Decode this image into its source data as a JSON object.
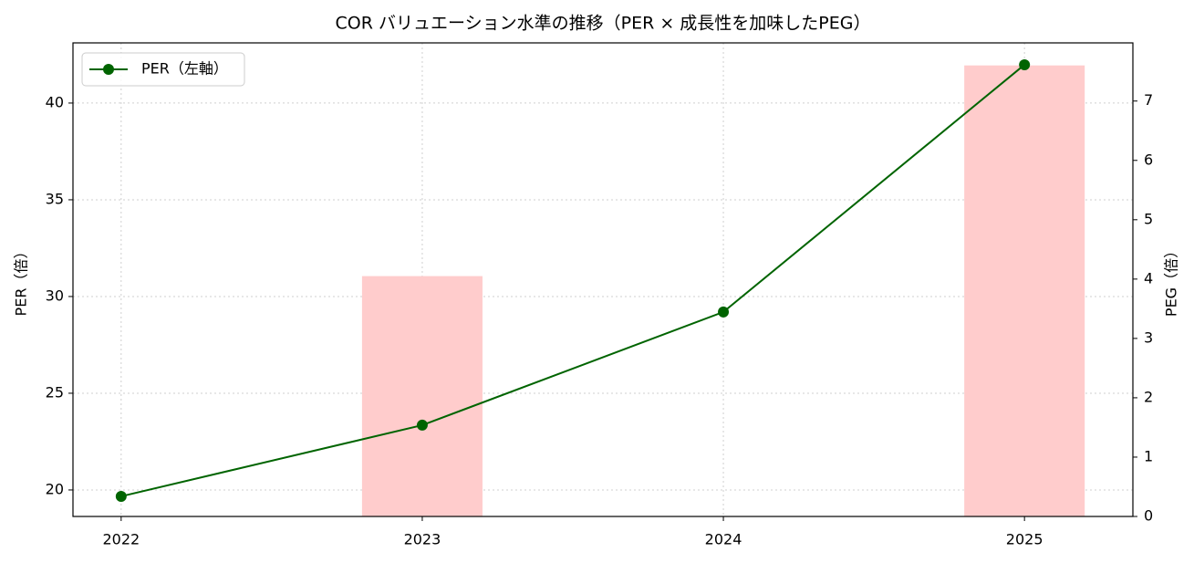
{
  "chart_data": {
    "type": "combo",
    "title": "COR バリュエーション水準の推移（PER × 成長性を加味したPEG）",
    "y_label": "PER（倍）",
    "y2_label": "PEG（倍）",
    "x": [
      2022,
      2023,
      2024,
      2025
    ],
    "xlim": [
      2021.84,
      2025.36
    ],
    "xticks": [
      2022,
      2023,
      2024,
      2025
    ],
    "ylim": [
      18.63,
      43.11
    ],
    "yticks": [
      20,
      25,
      30,
      35,
      40
    ],
    "y2lim": [
      0,
      7.98
    ],
    "y2ticks": [
      0,
      1,
      2,
      3,
      4,
      5,
      6,
      7
    ],
    "grid": true,
    "legend": "upper-left",
    "series": [
      {
        "type": "bar",
        "axis": "y2",
        "color": "#ffcccc",
        "values": [
          null,
          4.05,
          null,
          7.6
        ]
      },
      {
        "type": "line",
        "name": "PER（左軸）",
        "color": "#006400",
        "values": [
          19.67,
          23.35,
          29.2,
          41.98
        ]
      }
    ]
  }
}
